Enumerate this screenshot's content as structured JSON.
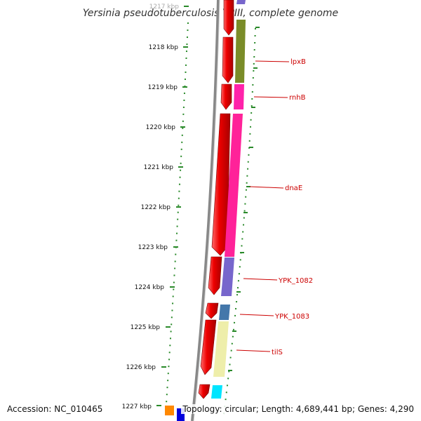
{
  "title": "Yersinia pseudotuberculosis YPIII, complete genome",
  "footer": {
    "accession": "Accession: NC_010465",
    "summary": "Topology: circular; Length: 4,689,441 bp; Genes: 4,290"
  },
  "ruler": {
    "ticks": [
      "1217 kbp",
      "1218 kbp",
      "1219 kbp",
      "1220 kbp",
      "1221 kbp",
      "1222 kbp",
      "1223 kbp",
      "1224 kbp",
      "1225 kbp",
      "1226 kbp",
      "1227 kbp"
    ]
  },
  "colors": {
    "cds": "#ee0000",
    "label": "#cc0000",
    "ruler": "#2a8a2a",
    "backbone": "#888888"
  },
  "genes": [
    {
      "label": "lpxB",
      "color": "#7a8c28"
    },
    {
      "label": "rnhB",
      "color": "#ff22aa"
    },
    {
      "label": "dnaE",
      "color": "#ff2299"
    },
    {
      "label": "YPK_1082",
      "color": "#7766cc"
    },
    {
      "label": "YPK_1083",
      "color": "#4477aa"
    },
    {
      "label": "tilS",
      "color": "#eeeeaa"
    }
  ]
}
